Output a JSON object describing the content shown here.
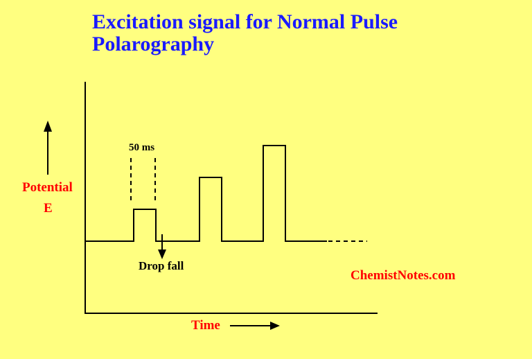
{
  "title": "Excitation signal for Normal Pulse Polarography",
  "y_label_1": "Potential",
  "y_label_2": "E",
  "x_label": "Time",
  "pulse_width_label": "50 ms",
  "drop_fall_label": "Drop fall",
  "watermark": "ChemistNotes.com",
  "colors": {
    "background": "#ffff80",
    "title": "#1a1aff",
    "labels": "#ff0000",
    "lines": "#000000"
  }
}
